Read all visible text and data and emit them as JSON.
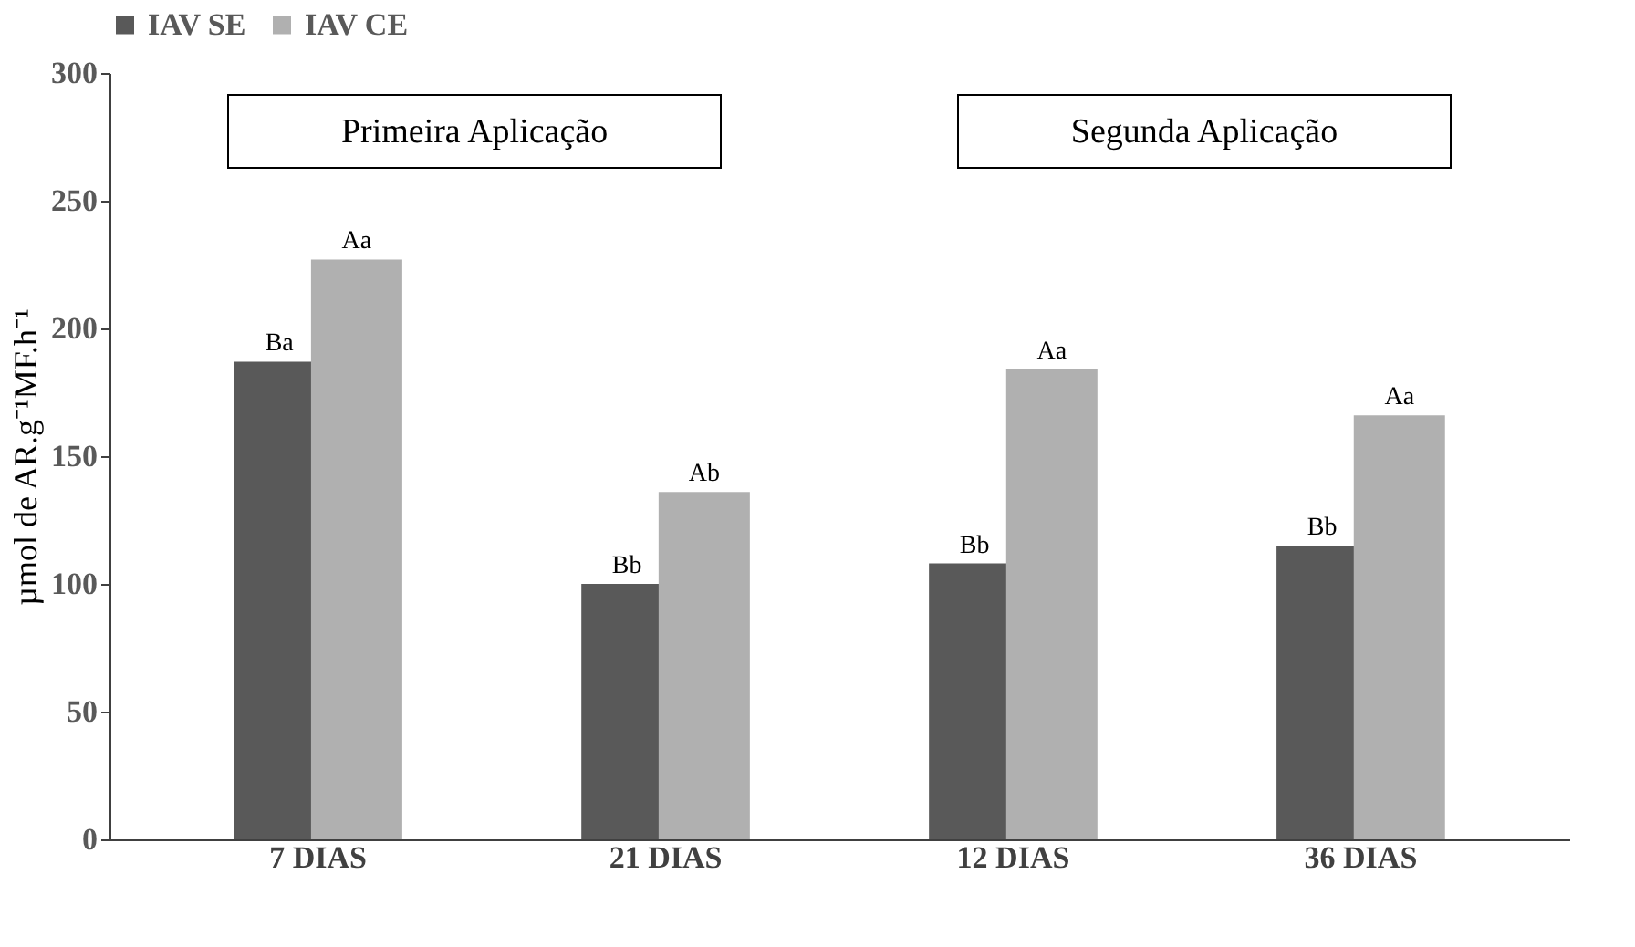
{
  "chart_data": {
    "type": "bar",
    "ylabel": "µmol de AR.g⁻¹MF.h⁻¹",
    "categories": [
      "7 DIAS",
      "21 DIAS",
      "12 DIAS",
      "36 DIAS"
    ],
    "series": [
      {
        "name": "IAV SE",
        "color": "#595959",
        "values": [
          187,
          100,
          108,
          115
        ],
        "value_labels": [
          "Ba",
          "Bb",
          "Bb",
          "Bb"
        ]
      },
      {
        "name": "IAV CE",
        "color": "#b0b0b0",
        "values": [
          227,
          136,
          184,
          166
        ],
        "value_labels": [
          "Aa",
          "Ab",
          "Aa",
          "Aa"
        ]
      }
    ],
    "ylim": [
      0,
      300
    ],
    "yticks": [
      0,
      50,
      100,
      150,
      200,
      250,
      300
    ],
    "grid": false,
    "legend": "top",
    "annotations": [
      "Primeira Aplicação",
      "Segunda Aplicação"
    ]
  }
}
